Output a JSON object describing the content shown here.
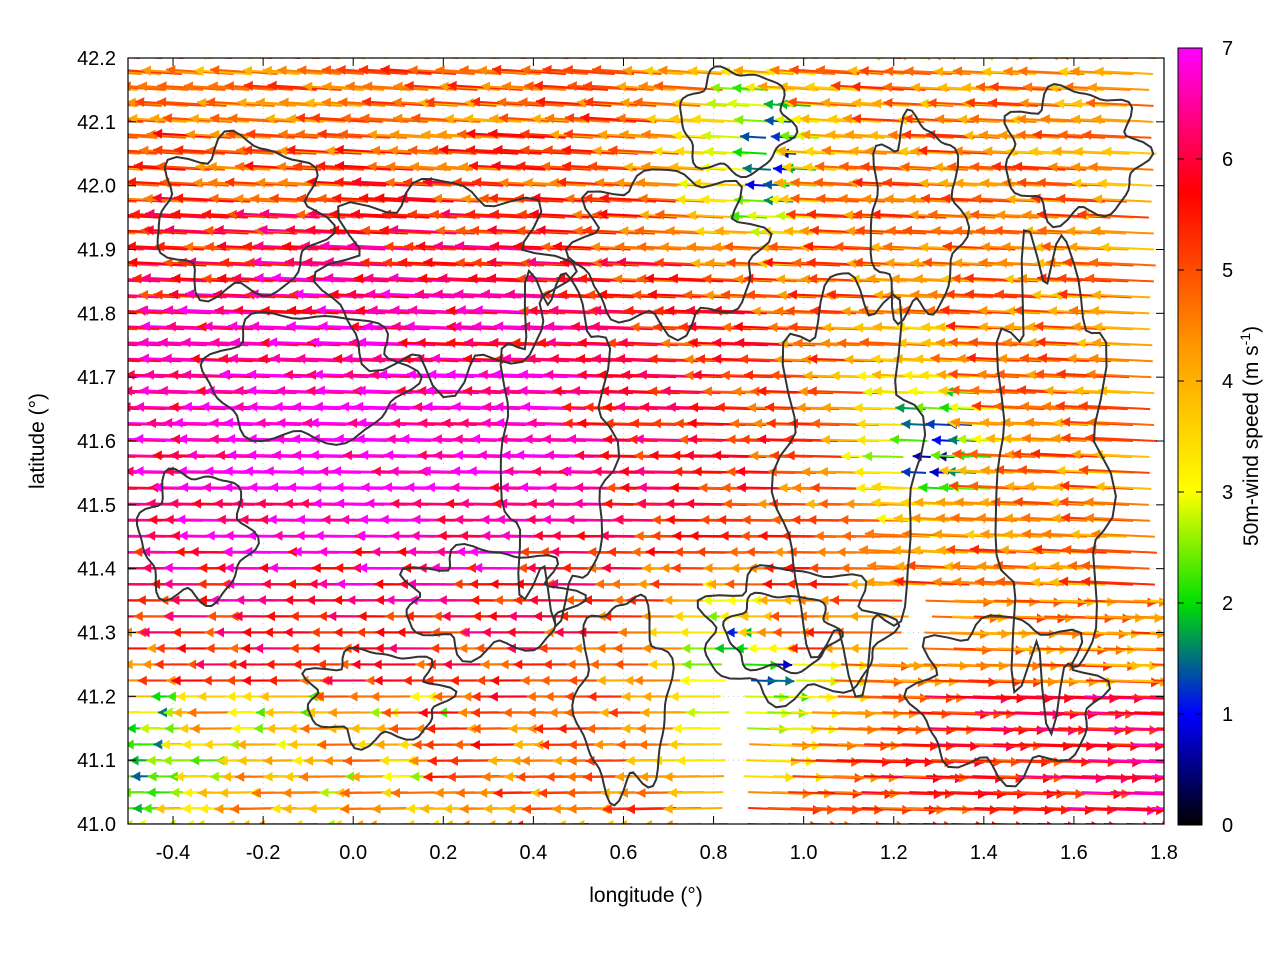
{
  "chart_data": {
    "type": "vector-field",
    "xlabel": "longitude (°)",
    "ylabel": "latitude (°)",
    "xlim": [
      -0.5,
      1.8
    ],
    "ylim": [
      41.0,
      42.2
    ],
    "x_ticks": [
      "-0.4",
      "-0.2",
      "0.0",
      "0.2",
      "0.4",
      "0.6",
      "0.8",
      "1.0",
      "1.2",
      "1.4",
      "1.6",
      "1.8"
    ],
    "x_tick_values": [
      -0.4,
      -0.2,
      0.0,
      0.2,
      0.4,
      0.6,
      0.8,
      1.0,
      1.2,
      1.4,
      1.6,
      1.8
    ],
    "y_ticks": [
      "41.0",
      "41.1",
      "41.2",
      "41.3",
      "41.4",
      "41.5",
      "41.6",
      "41.7",
      "41.8",
      "41.9",
      "42.0",
      "42.1",
      "42.2"
    ],
    "y_tick_values": [
      41.0,
      41.1,
      41.2,
      41.3,
      41.4,
      41.5,
      41.6,
      41.7,
      41.8,
      41.9,
      42.0,
      42.1,
      42.2
    ],
    "grid": true,
    "colorbar": {
      "label": "50m-wind speed (m s",
      "label_exponent": "-1",
      "label_close": ")",
      "range": [
        0,
        7
      ],
      "ticks": [
        "0",
        "1",
        "2",
        "3",
        "4",
        "5",
        "6",
        "7"
      ],
      "tick_values": [
        0,
        1,
        2,
        3,
        4,
        5,
        6,
        7
      ],
      "palette": [
        {
          "value": 0,
          "color": "#000000"
        },
        {
          "value": 1,
          "color": "#0000ff"
        },
        {
          "value": 2,
          "color": "#00e000"
        },
        {
          "value": 3,
          "color": "#ffff00"
        },
        {
          "value": 4.3,
          "color": "#ff9900"
        },
        {
          "value": 5.7,
          "color": "#ff0000"
        },
        {
          "value": 7,
          "color": "#ff00ff"
        }
      ]
    },
    "wind_field_samples": [
      {
        "lat": 42.15,
        "lon_start": -0.5,
        "lon_end": 0.7,
        "speed": 6.5,
        "direction": "W"
      },
      {
        "lat": 42.05,
        "lon_start": -0.5,
        "lon_end": 0.6,
        "speed": 6.3,
        "direction": "W"
      },
      {
        "lat": 41.9,
        "lon_start": -0.5,
        "lon_end": 0.8,
        "speed": 6.2,
        "direction": "W"
      },
      {
        "lat": 41.75,
        "lon_start": -0.5,
        "lon_end": 1.2,
        "speed": 6.5,
        "direction": "W"
      },
      {
        "lat": 41.6,
        "lon_start": -0.5,
        "lon_end": 1.2,
        "speed": 6.8,
        "direction": "W"
      },
      {
        "lat": 41.5,
        "lon_start": -0.5,
        "lon_end": 1.0,
        "speed": 7.0,
        "direction": "W"
      },
      {
        "lat": 41.35,
        "lon_start": -0.5,
        "lon_end": 0.6,
        "speed": 6.8,
        "direction": "W"
      },
      {
        "lat": 41.2,
        "lon_start": -0.5,
        "lon_end": 0.6,
        "speed": 6.0,
        "direction": "W"
      },
      {
        "lat": 41.1,
        "lon_start": 1.0,
        "lon_end": 1.8,
        "speed": 5.5,
        "direction": "E"
      },
      {
        "lat": 41.6,
        "lon_start": 1.3,
        "lon_end": 1.8,
        "speed": 4.0,
        "direction": "W"
      }
    ],
    "calm_regions": [
      {
        "lon": 0.95,
        "lat": 42.05,
        "speed": 1.0
      },
      {
        "lon": 1.32,
        "lat": 41.6,
        "speed": 1.0
      },
      {
        "lon": 0.9,
        "lat": 41.25,
        "speed": 1.2
      },
      {
        "lon": -0.4,
        "lat": 41.08,
        "speed": 1.5
      }
    ]
  }
}
